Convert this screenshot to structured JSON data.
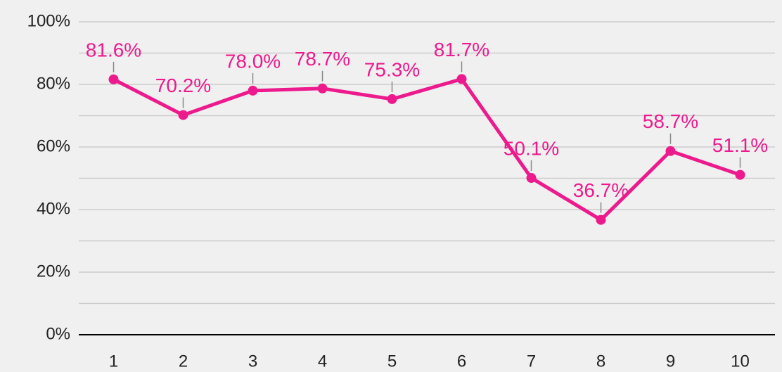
{
  "chart_data": {
    "type": "line",
    "categories": [
      "1",
      "2",
      "3",
      "4",
      "5",
      "6",
      "7",
      "8",
      "9",
      "10"
    ],
    "series": [
      {
        "name": null,
        "color": "#ec1a8c",
        "values": [
          81.6,
          70.2,
          78.0,
          78.7,
          75.3,
          81.7,
          50.1,
          36.7,
          58.7,
          51.1
        ],
        "value_labels": [
          "81.6%",
          "70.2%",
          "78.0%",
          "78.7%",
          "75.3%",
          "81.7%",
          "50.1%",
          "36.7%",
          "58.7%",
          "51.1%"
        ]
      }
    ],
    "ylim": [
      0,
      100
    ],
    "yticks": [
      {
        "value": 0,
        "label": "0%"
      },
      {
        "value": 20,
        "label": "20%"
      },
      {
        "value": 40,
        "label": "40%"
      },
      {
        "value": 60,
        "label": "60%"
      },
      {
        "value": 80,
        "label": "80%"
      },
      {
        "value": 100,
        "label": "100%"
      }
    ],
    "minor_yticks": [
      10,
      30,
      50,
      70,
      90
    ],
    "grid": true
  }
}
